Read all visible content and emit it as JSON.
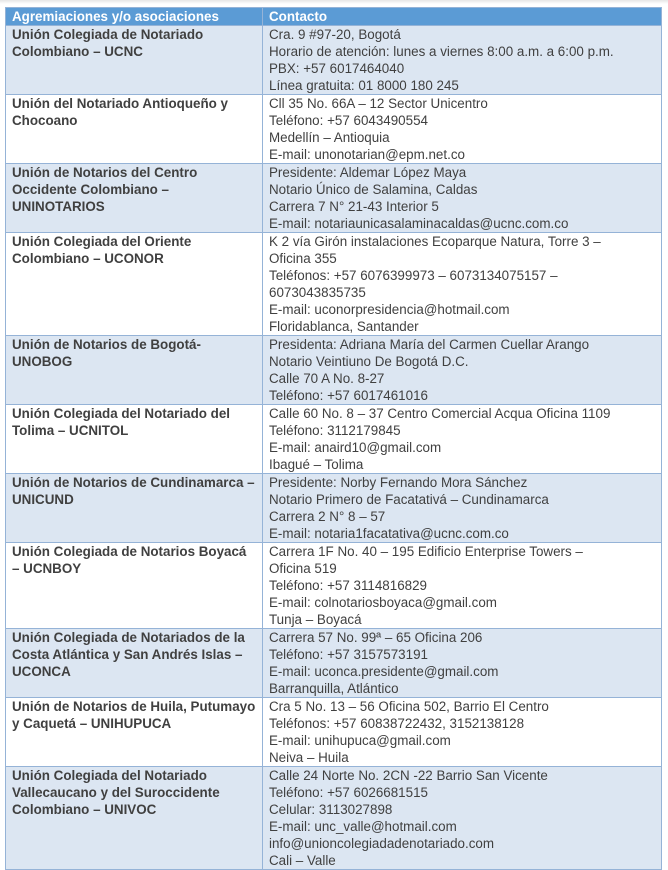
{
  "table": {
    "headers": [
      "Agremiaciones y/o asociaciones",
      "Contacto"
    ],
    "rows": [
      {
        "name": "Unión Colegiada de Notariado Colombiano – UCNC",
        "contact": [
          "Cra. 9 #97-20, Bogotá",
          "Horario de atención: lunes a viernes 8:00 a.m. a 6:00 p.m.",
          "PBX: +57 6017464040",
          "Línea gratuita: 01 8000 180 245"
        ]
      },
      {
        "name": "Unión del Notariado Antioqueño y Chocoano",
        "contact": [
          "Cll 35 No. 66A – 12 Sector Unicentro",
          "Teléfono: +57 6043490554",
          "Medellín – Antioquia",
          "E-mail: unonotarian@epm.net.co"
        ]
      },
      {
        "name": "Unión de Notarios del Centro Occidente Colombiano – UNINOTARIOS",
        "contact": [
          "Presidente: Aldemar López Maya",
          "Notario Único de Salamina, Caldas",
          "Carrera 7 N° 21-43 Interior 5",
          "E-mail: notariaunicasalaminacaldas@ucnc.com.co"
        ]
      },
      {
        "name": "Unión Colegiada del Oriente Colombiano – UCONOR",
        "contact": [
          "K 2 vía Girón instalaciones Ecoparque Natura, Torre 3 –",
          "Oficina 355",
          "Teléfonos: +57 6076399973 – 6073134075157 –",
          "6073043835735",
          "E-mail: uconorpresidencia@hotmail.com",
          "Floridablanca, Santander"
        ]
      },
      {
        "name": "Unión de Notarios de Bogotá- UNOBOG",
        "contact": [
          "Presidenta: Adriana María del Carmen Cuellar Arango",
          "Notario Veintiuno De Bogotá D.C.",
          "Calle 70 A No. 8-27",
          "Teléfono: +57 6017461016"
        ]
      },
      {
        "name": "Unión Colegiada del Notariado del Tolima – UCNITOL",
        "contact": [
          "Calle 60 No. 8 – 37 Centro Comercial Acqua Oficina 1109",
          "Teléfono: 3112179845",
          "E-mail: anaird10@gmail.com",
          "Ibagué – Tolima"
        ]
      },
      {
        "name": "Unión de Notarios de Cundinamarca – UNICUND",
        "contact": [
          "Presidente: Norby Fernando Mora Sánchez",
          "Notario Primero de Facatativá – Cundinamarca",
          "Carrera 2 N° 8 – 57",
          "E-mail: notaria1facatativa@ucnc.com.co"
        ]
      },
      {
        "name": "Unión Colegiada de Notarios Boyacá – UCNBOY",
        "contact": [
          "Carrera 1F No. 40 – 195 Edificio Enterprise Towers –",
          "Oficina 519",
          "Teléfono: +57 3114816829",
          "E-mail: colnotariosboyaca@gmail.com",
          "Tunja – Boyacá"
        ]
      },
      {
        "name": "Unión Colegiada de Notariados de la Costa Atlántica y San Andrés Islas – UCONCA",
        "contact": [
          "Carrera 57 No. 99ª – 65 Oficina 206",
          "Teléfono: +57 3157573191",
          "E-mail: uconca.presidente@gmail.com",
          "Barranquilla, Atlántico"
        ]
      },
      {
        "name": "Unión de Notarios de Huila, Putumayo y Caquetá – UNIHUPUCA",
        "contact": [
          "Cra 5 No. 13 – 56 Oficina 502, Barrio El Centro",
          "Teléfonos: +57 60838722432, 3152138128",
          "E-mail: unihupuca@gmail.com",
          "Neiva – Huila"
        ]
      },
      {
        "name": "Unión Colegiada del Notariado Vallecaucano y del Suroccidente Colombiano – UNIVOC",
        "contact": [
          "Calle 24 Norte No. 2CN -22 Barrio San Vicente",
          "Teléfono: +57 6026681515",
          "Celular: 3113027898",
          "E-mail: unc_valle@hotmail.com",
          "info@unioncolegiadadenotariado.com",
          "Cali – Valle"
        ]
      }
    ]
  },
  "colors": {
    "header": "#5b9bd5",
    "stripe": "#dce6f2",
    "border": "#95b3d7",
    "text": "#404040"
  }
}
